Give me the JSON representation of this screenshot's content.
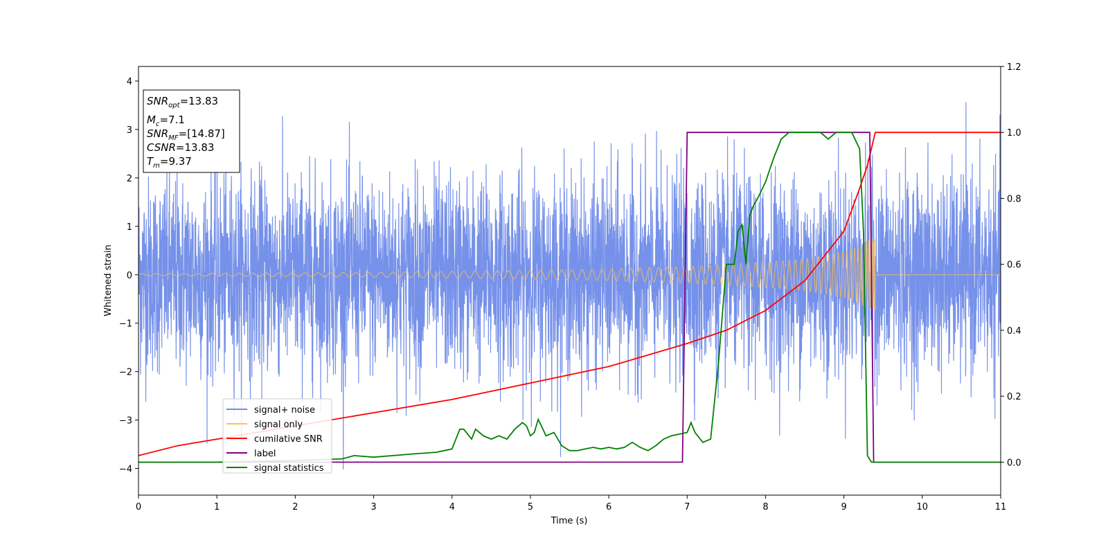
{
  "chart_data": {
    "type": "line",
    "xlabel": "Time (s)",
    "ylabel": "Whitened strain",
    "xlim": [
      0,
      11
    ],
    "ylim_left": [
      -4.55,
      4.3
    ],
    "ylim_right": [
      -0.1,
      1.2
    ],
    "x_ticks": [
      "0",
      "1",
      "2",
      "3",
      "4",
      "5",
      "6",
      "7",
      "8",
      "9",
      "10",
      "11"
    ],
    "y_left_ticks": [
      "4",
      "3",
      "2",
      "1",
      "0",
      "−1",
      "−2",
      "−3",
      "−4"
    ],
    "y_right_ticks": [
      "1.2",
      "1.0",
      "0.8",
      "0.6",
      "0.4",
      "0.2",
      "0.0"
    ],
    "stats_box": {
      "snr_opt": {
        "base": "SNR",
        "sub": "opt",
        "value": "=13.83"
      },
      "mc": {
        "base": "M",
        "sub": "c",
        "value": "=7.1"
      },
      "snr_mf": {
        "base": "SNR",
        "sub": "MF",
        "value": "=[14.87]"
      },
      "csnr": {
        "base": "CSNR",
        "sub": "",
        "value": "=13.83"
      },
      "tm": {
        "base": "T",
        "sub": "m",
        "value": "=9.37"
      }
    },
    "legend": {
      "placement": "lower-left",
      "entries": [
        {
          "label": "signal+ noise",
          "color": "#6f8be8"
        },
        {
          "label": "signal only",
          "color": "#ffc04d"
        },
        {
          "label": "cumilative SNR",
          "color": "#ff0000"
        },
        {
          "label": "label",
          "color": "#800080"
        },
        {
          "label": "signal statistics",
          "color": "#008000"
        }
      ]
    },
    "series": [
      {
        "name": "signal+ noise",
        "axis": "left",
        "kind": "noise",
        "color": "#6f8be8",
        "approx_std": 1.0,
        "approx_range": [
          -4.15,
          3.9
        ]
      },
      {
        "name": "signal only",
        "axis": "left",
        "kind": "chirp",
        "color": "#ffc04d",
        "merger_time": 9.37,
        "end_time": 9.4,
        "envelope": [
          [
            0.0,
            0.02
          ],
          [
            1.0,
            0.03
          ],
          [
            2.0,
            0.04
          ],
          [
            3.0,
            0.05
          ],
          [
            4.0,
            0.07
          ],
          [
            5.0,
            0.09
          ],
          [
            6.0,
            0.12
          ],
          [
            7.0,
            0.17
          ],
          [
            8.0,
            0.26
          ],
          [
            8.5,
            0.33
          ],
          [
            9.0,
            0.47
          ],
          [
            9.2,
            0.6
          ],
          [
            9.35,
            0.75
          ]
        ]
      },
      {
        "name": "cumilative SNR",
        "axis": "right",
        "color": "#ff0000",
        "x": [
          0.0,
          0.5,
          1.0,
          2.0,
          3.0,
          4.0,
          5.0,
          6.0,
          7.0,
          7.5,
          8.0,
          8.5,
          9.0,
          9.2,
          9.3,
          9.37,
          9.4,
          11.0
        ],
        "y": [
          0.02,
          0.05,
          0.07,
          0.11,
          0.15,
          0.19,
          0.24,
          0.29,
          0.36,
          0.4,
          0.46,
          0.55,
          0.7,
          0.83,
          0.9,
          0.97,
          1.0,
          1.0
        ]
      },
      {
        "name": "label",
        "axis": "right",
        "color": "#800080",
        "x": [
          0.0,
          6.94,
          7.0,
          9.33,
          9.38,
          11.0
        ],
        "y": [
          0.0,
          0.0,
          1.0,
          1.0,
          0.0,
          0.0
        ]
      },
      {
        "name": "signal statistics",
        "axis": "right",
        "color": "#008000",
        "x": [
          0.0,
          1.0,
          2.0,
          2.6,
          2.75,
          3.0,
          3.5,
          3.8,
          4.0,
          4.1,
          4.15,
          4.25,
          4.3,
          4.4,
          4.5,
          4.6,
          4.7,
          4.8,
          4.9,
          4.95,
          5.0,
          5.05,
          5.1,
          5.2,
          5.3,
          5.4,
          5.5,
          5.6,
          5.7,
          5.8,
          5.9,
          6.0,
          6.1,
          6.2,
          6.3,
          6.4,
          6.5,
          6.6,
          6.7,
          6.8,
          6.9,
          7.0,
          7.05,
          7.1,
          7.2,
          7.3,
          7.4,
          7.5,
          7.6,
          7.65,
          7.7,
          7.75,
          7.8,
          7.85,
          7.9,
          8.0,
          8.1,
          8.2,
          8.3,
          8.4,
          8.5,
          8.6,
          8.7,
          8.8,
          8.9,
          9.0,
          9.1,
          9.2,
          9.25,
          9.3,
          9.35,
          9.38,
          9.45,
          11.0
        ],
        "y": [
          0.0,
          0.0,
          0.005,
          0.01,
          0.02,
          0.015,
          0.025,
          0.03,
          0.04,
          0.1,
          0.1,
          0.07,
          0.1,
          0.08,
          0.07,
          0.08,
          0.07,
          0.1,
          0.12,
          0.11,
          0.08,
          0.09,
          0.13,
          0.08,
          0.09,
          0.05,
          0.035,
          0.035,
          0.04,
          0.045,
          0.04,
          0.045,
          0.04,
          0.045,
          0.06,
          0.045,
          0.035,
          0.05,
          0.07,
          0.08,
          0.085,
          0.09,
          0.12,
          0.09,
          0.06,
          0.07,
          0.3,
          0.6,
          0.6,
          0.7,
          0.72,
          0.6,
          0.75,
          0.78,
          0.8,
          0.85,
          0.92,
          0.98,
          1.0,
          1.0,
          1.0,
          1.0,
          1.0,
          0.98,
          1.0,
          1.0,
          1.0,
          0.95,
          0.7,
          0.02,
          0.0,
          0.0,
          0.0,
          0.0
        ]
      }
    ]
  }
}
